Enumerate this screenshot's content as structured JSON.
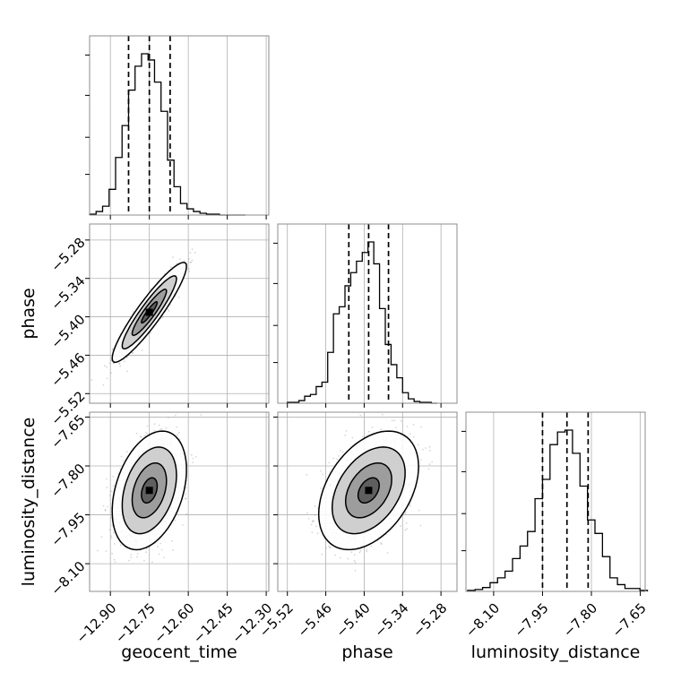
{
  "chart_data": {
    "type": "corner",
    "title": "",
    "parameters": [
      "geocent_time",
      "phase",
      "luminosity_distance"
    ],
    "axis_labels": {
      "geocent_time": "geocent_time",
      "phase": "phase",
      "luminosity_distance": "luminosity_distance"
    },
    "ranges": {
      "geocent_time": [
        -12.98,
        -12.29
      ],
      "phase": [
        -5.535,
        -5.255
      ],
      "luminosity_distance": [
        -8.185,
        -7.635
      ]
    },
    "ticks": {
      "geocent_time": [
        -12.9,
        -12.75,
        -12.6,
        -12.45,
        -12.3
      ],
      "phase": [
        -5.52,
        -5.46,
        -5.4,
        -5.34,
        -5.28
      ],
      "luminosity_distance": [
        -8.1,
        -7.95,
        -7.8,
        -7.65
      ]
    },
    "tick_labels": {
      "geocent_time": [
        "−12.90",
        "−12.75",
        "−12.60",
        "−12.45",
        "−12.30"
      ],
      "phase": [
        "−5.52",
        "−5.46",
        "−5.40",
        "−5.34",
        "−5.28"
      ],
      "luminosity_distance": [
        "−8.10",
        "−7.95",
        "−7.80",
        "−7.65"
      ]
    },
    "quantiles": {
      "geocent_time": [
        -12.83,
        -12.75,
        -12.67
      ],
      "phase": [
        -5.424,
        -5.393,
        -5.362
      ],
      "luminosity_distance": [
        -7.95,
        -7.875,
        -7.81
      ]
    },
    "histograms": {
      "geocent_time": {
        "edges": [
          -12.98,
          -12.955,
          -12.93,
          -12.905,
          -12.88,
          -12.855,
          -12.83,
          -12.805,
          -12.78,
          -12.755,
          -12.73,
          -12.705,
          -12.68,
          -12.655,
          -12.63,
          -12.605,
          -12.58,
          -12.555,
          -12.53,
          -12.505,
          -12.48,
          -12.455,
          -12.43,
          -12.405,
          -12.38
        ],
        "counts": [
          1,
          4,
          10,
          29,
          65,
          101,
          141,
          168,
          182,
          175,
          150,
          117,
          62,
          32,
          13,
          7,
          4,
          2,
          1,
          1,
          0,
          0,
          0,
          0
        ]
      },
      "phase": {
        "edges": [
          -5.52,
          -5.511,
          -5.502,
          -5.493,
          -5.484,
          -5.475,
          -5.466,
          -5.457,
          -5.448,
          -5.439,
          -5.43,
          -5.421,
          -5.412,
          -5.403,
          -5.394,
          -5.385,
          -5.376,
          -5.367,
          -5.358,
          -5.349,
          -5.34,
          -5.331,
          -5.322,
          -5.313,
          -5.304,
          -5.295,
          -5.286
        ],
        "counts": [
          1,
          1,
          3,
          8,
          10,
          19,
          24,
          58,
          102,
          110,
          134,
          149,
          162,
          172,
          184,
          159,
          108,
          67,
          44,
          29,
          12,
          5,
          2,
          1,
          1,
          0
        ]
      },
      "luminosity_distance": {
        "edges": [
          -8.18,
          -8.157,
          -8.134,
          -8.111,
          -8.088,
          -8.065,
          -8.042,
          -8.019,
          -7.996,
          -7.973,
          -7.95,
          -7.927,
          -7.904,
          -7.881,
          -7.858,
          -7.835,
          -7.812,
          -7.789,
          -7.766,
          -7.743,
          -7.72,
          -7.697,
          -7.674,
          -7.651,
          -7.628
        ],
        "counts": [
          1,
          2,
          4,
          9,
          14,
          21,
          34,
          47,
          62,
          96,
          116,
          152,
          165,
          167,
          143,
          109,
          74,
          60,
          36,
          14,
          7,
          3,
          3,
          1
        ]
      }
    },
    "correlations": {
      "phase|geocent_time": 0.92,
      "luminosity_distance|geocent_time": 0.35,
      "luminosity_distance|phase": 0.4
    },
    "stds": {
      "geocent_time": 0.055,
      "phase": 0.03,
      "luminosity_distance": 0.07
    },
    "grid": true,
    "samples_per_panel": 2200,
    "colors": {
      "samples": "#8a8a8a",
      "contour": "#000000",
      "fill_levels": [
        "#ffffff",
        "#cfcfcf",
        "#9d9d9d",
        "#5f5f5f"
      ],
      "quantile_line": "#000000",
      "grid": "#b0b0b0"
    }
  }
}
